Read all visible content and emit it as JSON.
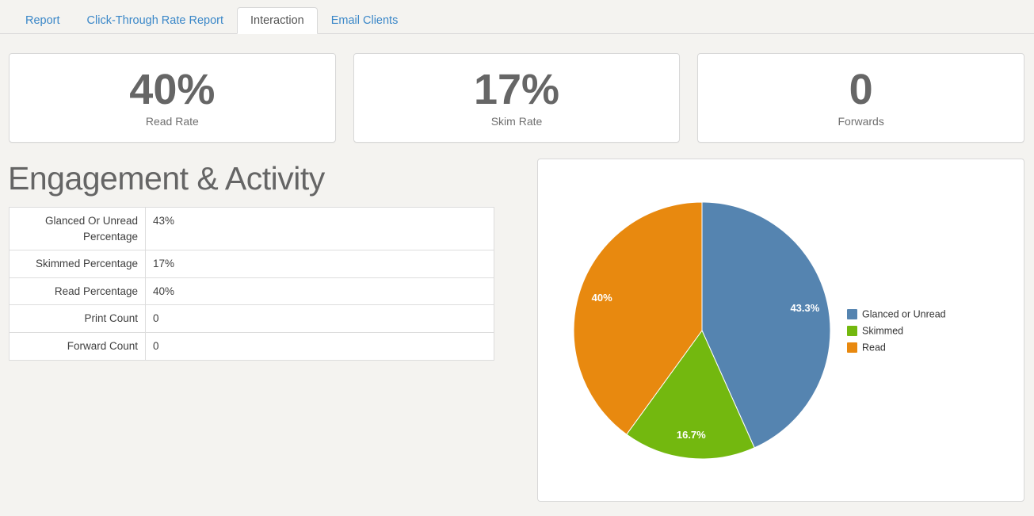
{
  "tabs": [
    {
      "label": "Report",
      "active": false
    },
    {
      "label": "Click-Through Rate Report",
      "active": false
    },
    {
      "label": "Interaction",
      "active": true
    },
    {
      "label": "Email Clients",
      "active": false
    }
  ],
  "stats": [
    {
      "value": "40%",
      "label": "Read Rate"
    },
    {
      "value": "17%",
      "label": "Skim Rate"
    },
    {
      "value": "0",
      "label": "Forwards"
    }
  ],
  "section": {
    "title": "Engagement & Activity"
  },
  "table": {
    "rows": [
      {
        "label": "Glanced Or Unread Percentage",
        "value": "43%"
      },
      {
        "label": "Skimmed Percentage",
        "value": "17%"
      },
      {
        "label": "Read Percentage",
        "value": "40%"
      },
      {
        "label": "Print Count",
        "value": "0"
      },
      {
        "label": "Forward Count",
        "value": "0"
      }
    ]
  },
  "chart_data": {
    "type": "pie",
    "title": "",
    "slices": [
      {
        "name": "Glanced or Unread",
        "value": 43.3,
        "display": "43.3%",
        "color": "#5584b0"
      },
      {
        "name": "Skimmed",
        "value": 16.7,
        "display": "16.7%",
        "color": "#73b80f"
      },
      {
        "name": "Read",
        "value": 40,
        "display": "40%",
        "color": "#e8890f"
      }
    ],
    "start_angle_deg": 0,
    "direction": "clockwise",
    "legend_position": "right-middle",
    "data_labels": "inside, white bold"
  },
  "colors": {
    "link_blue": "#3a87c8",
    "page_background": "#f4f3f0",
    "panel_border": "#d8d8d8",
    "stat_number": "#666666"
  }
}
